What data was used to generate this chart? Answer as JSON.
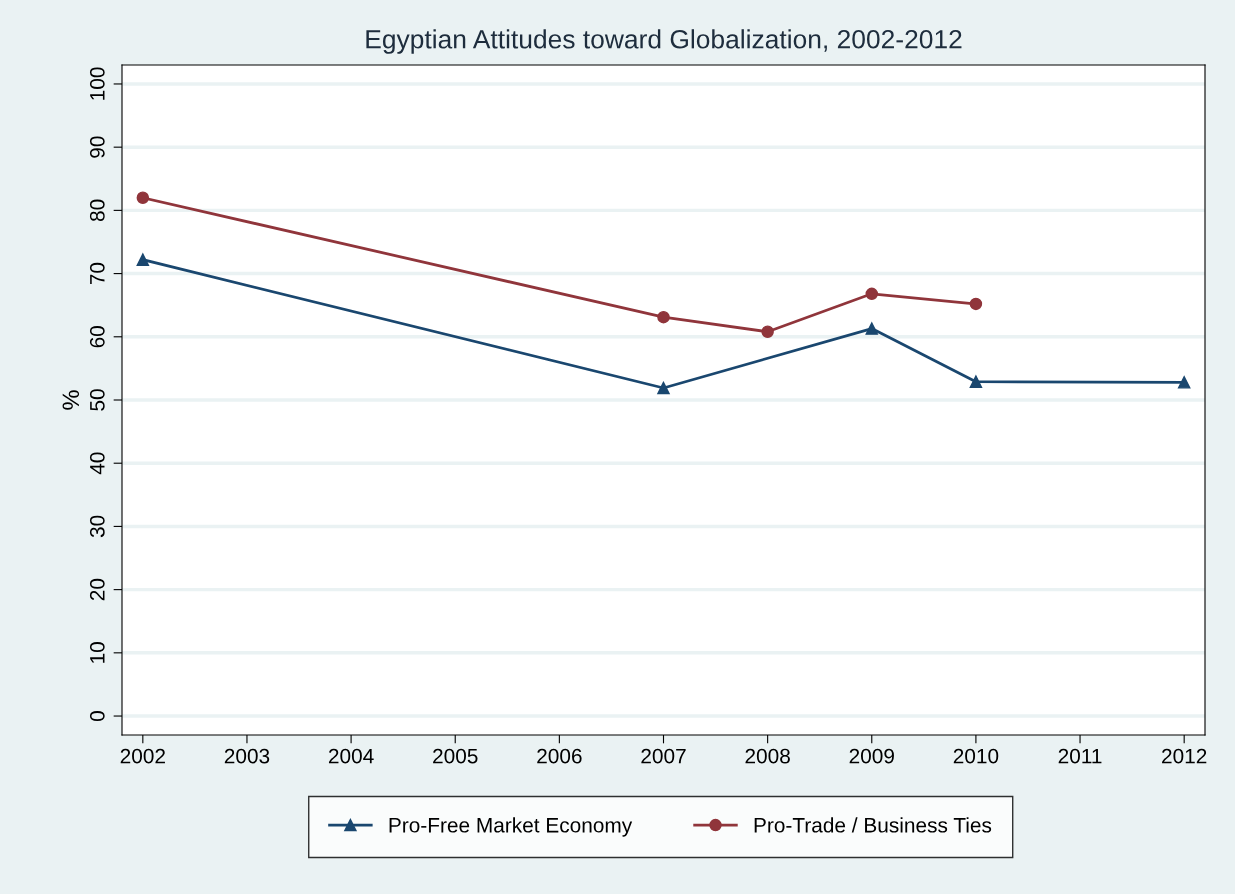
{
  "chart_data": {
    "type": "line",
    "title": "Egyptian Attitudes toward Globalization, 2002-2012",
    "ylabel": "%",
    "xlim": [
      2001.8,
      2012.2
    ],
    "xticks": [
      2002,
      2003,
      2004,
      2005,
      2006,
      2007,
      2008,
      2009,
      2010,
      2011,
      2012
    ],
    "ylim": [
      -3,
      103
    ],
    "yticks": [
      0,
      10,
      20,
      30,
      40,
      50,
      60,
      70,
      80,
      90,
      100
    ],
    "grid": "y",
    "legend": "bottom",
    "line_style": "solid",
    "series": [
      {
        "name": "Pro-Free Market Economy",
        "color": "#1a476f",
        "marker": "triangle",
        "x": [
          2002,
          2007,
          2009,
          2010,
          2012
        ],
        "values": [
          72.2,
          51.9,
          61.3,
          52.9,
          52.8
        ]
      },
      {
        "name": "Pro-Trade / Business Ties",
        "color": "#90353b",
        "marker": "circle",
        "x": [
          2002,
          2007,
          2008,
          2009,
          2010
        ],
        "values": [
          82.0,
          63.1,
          60.8,
          66.8,
          65.2
        ]
      }
    ]
  }
}
